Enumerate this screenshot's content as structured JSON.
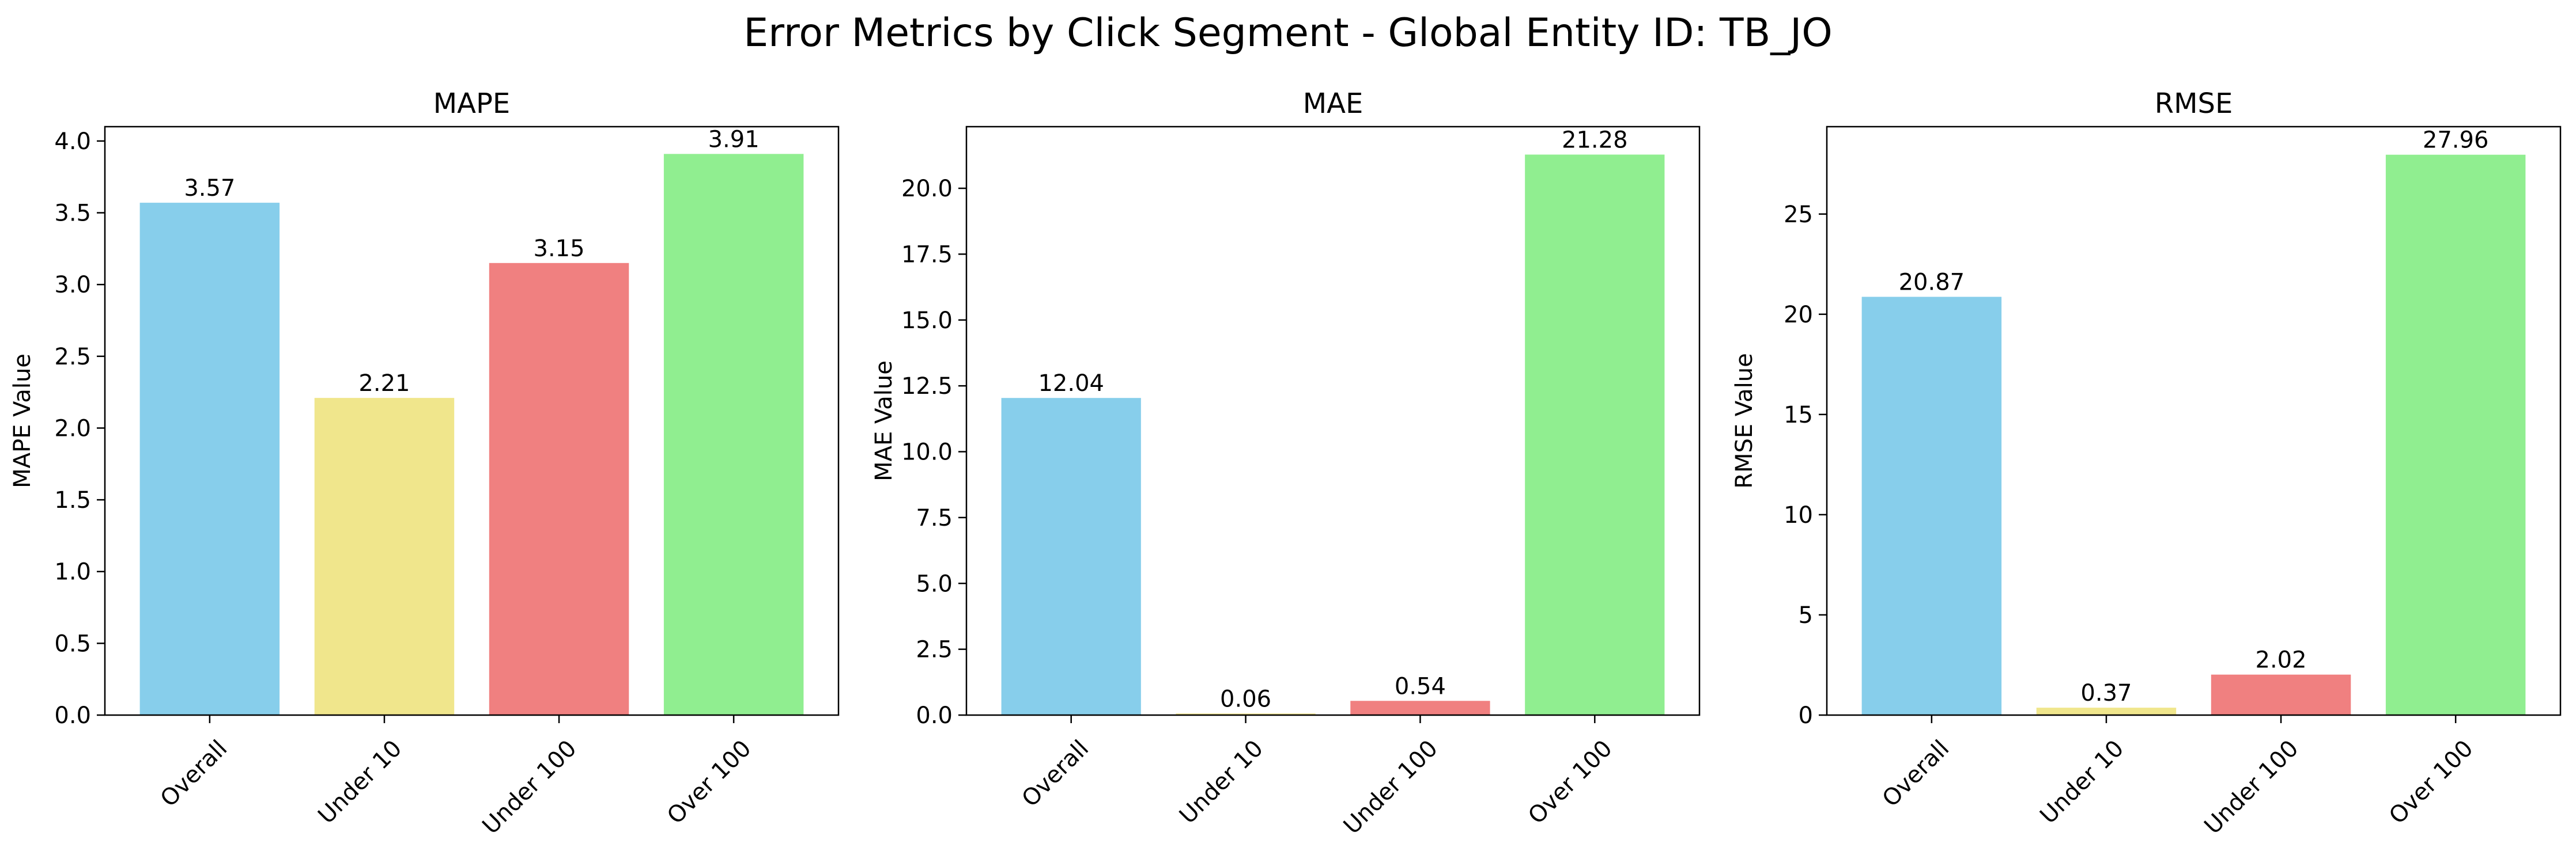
{
  "figure": {
    "title": "Error Metrics by Click Segment - Global Entity ID: TB_JO"
  },
  "chart_data": [
    {
      "type": "bar",
      "title": "MAPE",
      "xlabel": "",
      "ylabel": "MAPE Value",
      "categories": [
        "Overall",
        "Under 10",
        "Under 100",
        "Over 100"
      ],
      "values": [
        3.57,
        2.21,
        3.15,
        3.91
      ],
      "value_labels": [
        "3.57",
        "2.21",
        "3.15",
        "3.91"
      ],
      "ylim": [
        0,
        4.1
      ],
      "yticks": [
        0.0,
        0.5,
        1.0,
        1.5,
        2.0,
        2.5,
        3.0,
        3.5,
        4.0
      ],
      "ytick_labels": [
        "0.0",
        "0.5",
        "1.0",
        "1.5",
        "2.0",
        "2.5",
        "3.0",
        "3.5",
        "4.0"
      ],
      "colors": [
        "#87CEEB",
        "#F0E68C",
        "#F08080",
        "#90EE90"
      ],
      "grid": false
    },
    {
      "type": "bar",
      "title": "MAE",
      "xlabel": "",
      "ylabel": "MAE Value",
      "categories": [
        "Overall",
        "Under 10",
        "Under 100",
        "Over 100"
      ],
      "values": [
        12.04,
        0.06,
        0.54,
        21.28
      ],
      "value_labels": [
        "12.04",
        "0.06",
        "0.54",
        "21.28"
      ],
      "ylim": [
        0,
        22.34
      ],
      "yticks": [
        0.0,
        2.5,
        5.0,
        7.5,
        10.0,
        12.5,
        15.0,
        17.5,
        20.0
      ],
      "ytick_labels": [
        "0.0",
        "2.5",
        "5.0",
        "7.5",
        "10.0",
        "12.5",
        "15.0",
        "17.5",
        "20.0"
      ],
      "colors": [
        "#87CEEB",
        "#F0E68C",
        "#F08080",
        "#90EE90"
      ],
      "grid": false
    },
    {
      "type": "bar",
      "title": "RMSE",
      "xlabel": "",
      "ylabel": "RMSE Value",
      "categories": [
        "Overall",
        "Under 10",
        "Under 100",
        "Over 100"
      ],
      "values": [
        20.87,
        0.37,
        2.02,
        27.96
      ],
      "value_labels": [
        "20.87",
        "0.37",
        "2.02",
        "27.96"
      ],
      "ylim": [
        0,
        29.36
      ],
      "yticks": [
        0,
        5,
        10,
        15,
        20,
        25
      ],
      "ytick_labels": [
        "0",
        "5",
        "10",
        "15",
        "20",
        "25"
      ],
      "colors": [
        "#87CEEB",
        "#F0E68C",
        "#F08080",
        "#90EE90"
      ],
      "grid": false
    }
  ]
}
